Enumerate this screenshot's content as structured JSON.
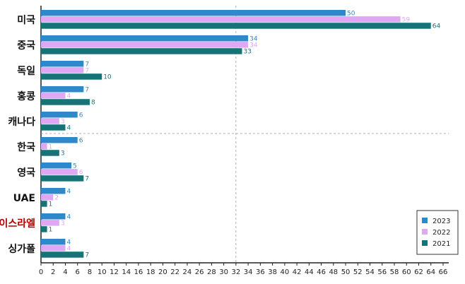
{
  "chart_data": {
    "type": "bar",
    "orientation": "horizontal",
    "categories": [
      "미국",
      "중국",
      "독일",
      "홍콩",
      "캐나다",
      "한국",
      "영국",
      "UAE",
      "이스라엘",
      "싱가폴"
    ],
    "highlighted_category": "이스라엘",
    "series": [
      {
        "name": "2023",
        "color": "#2f88c8",
        "values": [
          50,
          34,
          7,
          7,
          6,
          6,
          5,
          4,
          4,
          4
        ]
      },
      {
        "name": "2022",
        "color": "#e0a8f2",
        "values": [
          59,
          34,
          7,
          4,
          3,
          1,
          6,
          2,
          3,
          4
        ]
      },
      {
        "name": "2021",
        "color": "#167478",
        "values": [
          64,
          33,
          10,
          8,
          4,
          3,
          7,
          1,
          1,
          7
        ]
      }
    ],
    "xlim": [
      0,
      66
    ],
    "xticks": [
      0,
      2,
      4,
      6,
      8,
      10,
      12,
      14,
      16,
      18,
      20,
      22,
      24,
      26,
      28,
      30,
      32,
      34,
      36,
      38,
      40,
      42,
      44,
      46,
      48,
      50,
      52,
      54,
      56,
      58,
      60,
      62,
      64,
      66
    ],
    "reference_line_x": 32,
    "legend_position": "bottom-right",
    "grid": false,
    "label_color": "#111111",
    "highlight_label_color": "#b30000"
  }
}
